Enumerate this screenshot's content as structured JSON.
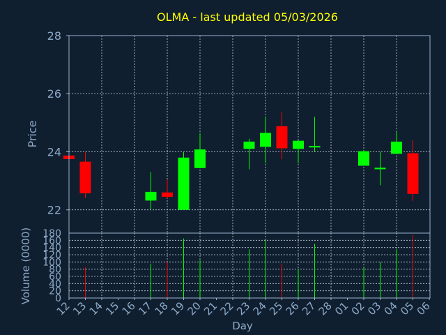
{
  "chart_data": {
    "type": "candlestick",
    "title": "OLMA - last updated 05/03/2026",
    "colors": {
      "background": "#0f1f30",
      "frame": "#9bb2cc",
      "grid": "#c8d2dc",
      "title": "#ffff00",
      "axis_text": "#8ea9c6",
      "up": "#00ff00",
      "down": "#ff0000"
    },
    "x_ticks": [
      "12",
      "13",
      "14",
      "15",
      "16",
      "17",
      "18",
      "19",
      "20",
      "21",
      "22",
      "23",
      "24",
      "25",
      "26",
      "27",
      "28",
      "01",
      "02",
      "03",
      "04",
      "05",
      "06"
    ],
    "xlabel": "Day",
    "price_panel": {
      "ylabel": "Price",
      "ylim": [
        21.2,
        28
      ],
      "y_ticks": [
        22,
        24,
        26,
        28
      ],
      "grid": true
    },
    "volume_panel": {
      "ylabel": "Volume (0000)",
      "ylim": [
        0,
        180
      ],
      "y_ticks": [
        0,
        20,
        40,
        60,
        80,
        100,
        120,
        140,
        160,
        180
      ],
      "grid": true
    },
    "candles": [
      {
        "day": "12",
        "open": 23.87,
        "high": 23.87,
        "low": 23.75,
        "close": 23.75,
        "volume": 0
      },
      {
        "day": "13",
        "open": 23.66,
        "high": 24.0,
        "low": 22.4,
        "close": 22.57,
        "volume": 85
      },
      {
        "day": "17",
        "open": 22.32,
        "high": 23.3,
        "low": 22.0,
        "close": 22.62,
        "volume": 95
      },
      {
        "day": "18",
        "open": 22.6,
        "high": 23.05,
        "low": 22.4,
        "close": 22.45,
        "volume": 100
      },
      {
        "day": "19",
        "open": 22.0,
        "high": 24.0,
        "low": 22.0,
        "close": 23.8,
        "volume": 165
      },
      {
        "day": "20",
        "open": 23.44,
        "high": 24.65,
        "low": 23.44,
        "close": 24.08,
        "volume": 105
      },
      {
        "day": "23",
        "open": 24.1,
        "high": 24.45,
        "low": 23.4,
        "close": 24.35,
        "volume": 135
      },
      {
        "day": "24",
        "open": 24.17,
        "high": 25.2,
        "low": 23.6,
        "close": 24.65,
        "volume": 160
      },
      {
        "day": "25",
        "open": 24.88,
        "high": 25.35,
        "low": 23.75,
        "close": 24.12,
        "volume": 95
      },
      {
        "day": "26",
        "open": 24.1,
        "high": 24.4,
        "low": 23.6,
        "close": 24.38,
        "volume": 80
      },
      {
        "day": "27",
        "open": 24.15,
        "high": 25.2,
        "low": 24.0,
        "close": 24.2,
        "volume": 150
      },
      {
        "day": "02",
        "open": 23.52,
        "high": 24.05,
        "low": 23.52,
        "close": 24.02,
        "volume": 85
      },
      {
        "day": "03",
        "open": 23.4,
        "high": 24.0,
        "low": 22.85,
        "close": 23.45,
        "volume": 100
      },
      {
        "day": "04",
        "open": 23.93,
        "high": 24.7,
        "low": 23.93,
        "close": 24.35,
        "volume": 135
      },
      {
        "day": "05",
        "open": 23.95,
        "high": 24.4,
        "low": 22.3,
        "close": 22.55,
        "volume": 175
      }
    ]
  }
}
